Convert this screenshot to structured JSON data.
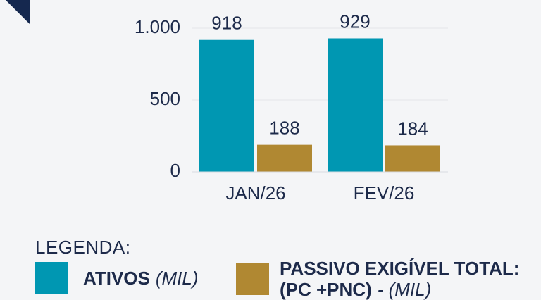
{
  "chart_data": {
    "type": "bar",
    "categories": [
      "JAN/26",
      "FEV/26"
    ],
    "series": [
      {
        "name": "ATIVOS",
        "unit": "(MIL)",
        "color": "#0097b2",
        "values": [
          918,
          929
        ]
      },
      {
        "name": "PASSIVO EXIGÍVEL TOTAL: (PC +PNC)",
        "unit": "- (MIL)",
        "color": "#b08832",
        "values": [
          188,
          184
        ]
      }
    ],
    "ylim": [
      0,
      1000
    ],
    "yticks": [
      0,
      500,
      {
        "value": 1000,
        "label": "1.000"
      }
    ],
    "legend_title": "LEGENDA:",
    "grid": true
  }
}
